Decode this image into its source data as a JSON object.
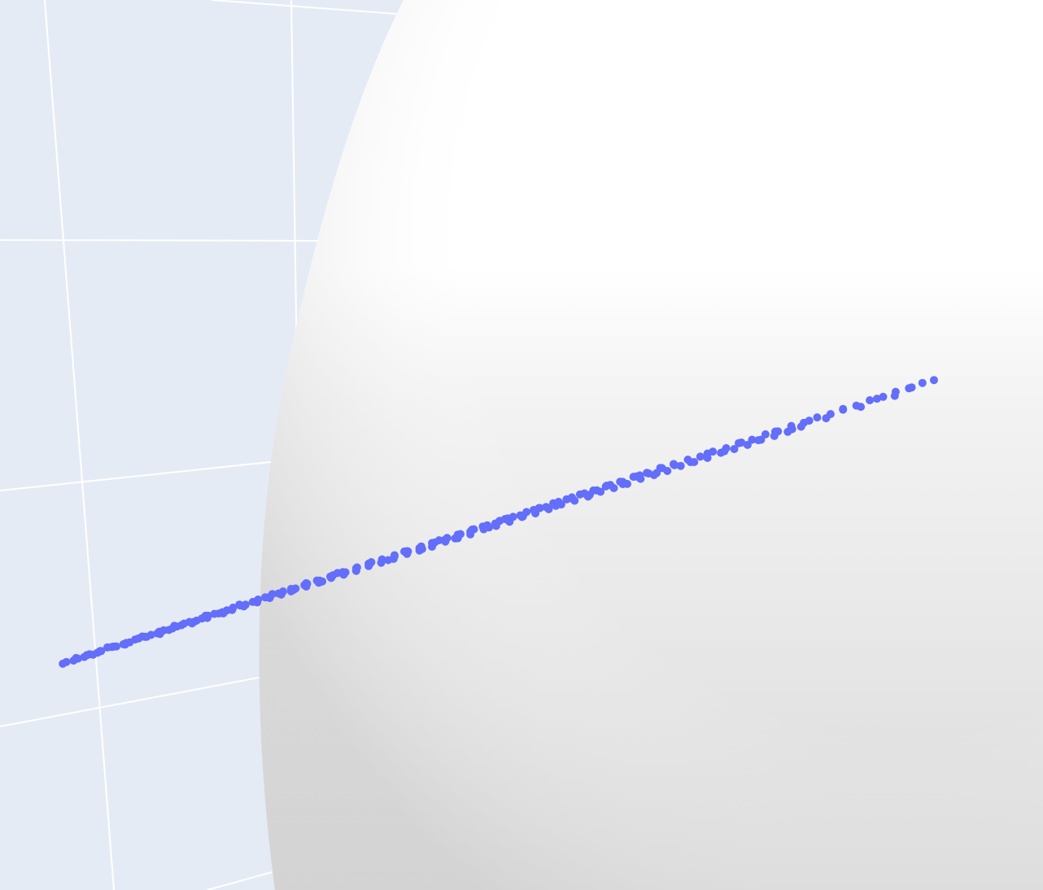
{
  "chart_data": {
    "type": "scatter",
    "title": "",
    "xlabel": "",
    "ylabel": "",
    "zlabel": "",
    "series": [
      {
        "marker": "circle",
        "color": "#636efa",
        "points": [
          [
            0.023,
            0.046
          ],
          [
            0.035,
            0.058
          ],
          [
            0.05,
            0.041
          ],
          [
            0.062,
            0.067
          ],
          [
            0.078,
            0.052
          ],
          [
            0.091,
            0.081
          ],
          [
            0.104,
            0.066
          ],
          [
            0.117,
            0.095
          ],
          [
            0.131,
            0.079
          ],
          [
            0.146,
            0.108
          ],
          [
            0.159,
            0.091
          ],
          [
            0.173,
            0.121
          ],
          [
            0.186,
            0.104
          ],
          [
            0.202,
            0.133
          ],
          [
            0.214,
            0.116
          ],
          [
            0.228,
            0.146
          ],
          [
            0.242,
            0.13
          ],
          [
            0.255,
            0.159
          ],
          [
            0.27,
            0.142
          ],
          [
            0.284,
            0.171
          ],
          [
            0.297,
            0.155
          ],
          [
            0.311,
            0.184
          ],
          [
            0.326,
            0.167
          ],
          [
            0.34,
            0.197
          ],
          [
            0.353,
            0.18
          ],
          [
            0.367,
            0.208
          ],
          [
            0.381,
            0.193
          ],
          [
            0.395,
            0.22
          ],
          [
            0.409,
            0.204
          ],
          [
            0.423,
            0.233
          ],
          [
            0.437,
            0.217
          ],
          [
            0.451,
            0.246
          ],
          [
            0.466,
            0.229
          ],
          [
            0.48,
            0.258
          ],
          [
            0.494,
            0.242
          ],
          [
            0.508,
            0.27
          ],
          [
            0.522,
            0.255
          ],
          [
            0.536,
            0.282
          ],
          [
            0.551,
            0.267
          ],
          [
            0.565,
            0.295
          ],
          [
            0.579,
            0.279
          ],
          [
            0.594,
            0.307
          ],
          [
            0.608,
            0.292
          ],
          [
            0.622,
            0.319
          ],
          [
            0.637,
            0.304
          ],
          [
            0.651,
            0.332
          ],
          [
            0.666,
            0.317
          ],
          [
            0.68,
            0.344
          ],
          [
            0.695,
            0.329
          ],
          [
            0.709,
            0.357
          ],
          [
            0.724,
            0.341
          ],
          [
            0.738,
            0.369
          ],
          [
            0.752,
            0.354
          ],
          [
            0.767,
            0.381
          ],
          [
            0.781,
            0.366
          ],
          [
            0.796,
            0.393
          ],
          [
            0.811,
            0.378
          ],
          [
            0.825,
            0.406
          ],
          [
            0.84,
            0.391
          ],
          [
            0.854,
            0.417
          ],
          [
            0.869,
            0.402
          ],
          [
            0.884,
            0.43
          ],
          [
            0.898,
            0.414
          ],
          [
            0.913,
            0.441
          ],
          [
            0.928,
            0.426
          ],
          [
            0.943,
            0.452
          ],
          [
            0.957,
            0.438
          ],
          [
            0.972,
            0.463
          ],
          [
            0.987,
            0.449
          ],
          [
            1.0,
            0.474
          ],
          [
            0.038,
            0.022
          ],
          [
            0.057,
            0.076
          ],
          [
            0.073,
            0.03
          ],
          [
            0.093,
            0.099
          ],
          [
            0.112,
            0.055
          ],
          [
            0.132,
            0.131
          ],
          [
            0.148,
            0.066
          ],
          [
            0.168,
            0.145
          ],
          [
            0.183,
            0.083
          ],
          [
            0.203,
            0.165
          ],
          [
            0.221,
            0.098
          ],
          [
            0.241,
            0.183
          ],
          [
            0.258,
            0.118
          ],
          [
            0.279,
            0.199
          ],
          [
            0.296,
            0.138
          ],
          [
            0.314,
            0.219
          ],
          [
            0.331,
            0.154
          ],
          [
            0.352,
            0.236
          ],
          [
            0.369,
            0.173
          ],
          [
            0.388,
            0.254
          ],
          [
            0.406,
            0.192
          ],
          [
            0.426,
            0.271
          ],
          [
            0.445,
            0.211
          ],
          [
            0.463,
            0.288
          ],
          [
            0.482,
            0.229
          ],
          [
            0.501,
            0.306
          ],
          [
            0.519,
            0.248
          ],
          [
            0.539,
            0.324
          ],
          [
            0.557,
            0.266
          ],
          [
            0.576,
            0.341
          ],
          [
            0.594,
            0.284
          ],
          [
            0.614,
            0.359
          ],
          [
            0.632,
            0.302
          ],
          [
            0.651,
            0.377
          ],
          [
            0.67,
            0.32
          ],
          [
            0.689,
            0.394
          ],
          [
            0.708,
            0.339
          ],
          [
            0.727,
            0.412
          ],
          [
            0.746,
            0.356
          ],
          [
            0.765,
            0.43
          ],
          [
            0.784,
            0.374
          ],
          [
            0.803,
            0.448
          ],
          [
            0.822,
            0.392
          ],
          [
            0.841,
            0.465
          ],
          [
            0.86,
            0.411
          ],
          [
            0.879,
            0.483
          ],
          [
            0.898,
            0.429
          ],
          [
            0.918,
            0.5
          ],
          [
            0.936,
            0.446
          ],
          [
            0.956,
            0.517
          ],
          [
            0.975,
            0.463
          ],
          [
            0.047,
            0.061
          ],
          [
            0.065,
            0.053
          ],
          [
            0.083,
            0.074
          ],
          [
            0.098,
            0.087
          ],
          [
            0.115,
            0.081
          ],
          [
            0.129,
            0.102
          ],
          [
            0.142,
            0.115
          ],
          [
            0.156,
            0.106
          ],
          [
            0.17,
            0.129
          ],
          [
            0.185,
            0.142
          ],
          [
            0.198,
            0.134
          ],
          [
            0.213,
            0.156
          ],
          [
            0.226,
            0.168
          ],
          [
            0.24,
            0.16
          ],
          [
            0.255,
            0.182
          ],
          [
            0.268,
            0.194
          ],
          [
            0.282,
            0.186
          ],
          [
            0.296,
            0.208
          ],
          [
            0.31,
            0.219
          ],
          [
            0.324,
            0.211
          ],
          [
            0.338,
            0.233
          ],
          [
            0.352,
            0.244
          ],
          [
            0.366,
            0.236
          ],
          [
            0.38,
            0.257
          ],
          [
            0.394,
            0.268
          ],
          [
            0.409,
            0.26
          ],
          [
            0.423,
            0.281
          ],
          [
            0.437,
            0.292
          ],
          [
            0.452,
            0.284
          ],
          [
            0.466,
            0.305
          ],
          [
            0.48,
            0.316
          ],
          [
            0.495,
            0.307
          ],
          [
            0.509,
            0.328
          ],
          [
            0.524,
            0.339
          ],
          [
            0.538,
            0.33
          ],
          [
            0.553,
            0.351
          ],
          [
            0.568,
            0.362
          ],
          [
            0.582,
            0.353
          ],
          [
            0.597,
            0.373
          ],
          [
            0.612,
            0.384
          ],
          [
            0.626,
            0.375
          ],
          [
            0.641,
            0.396
          ],
          [
            0.656,
            0.406
          ],
          [
            0.671,
            0.397
          ],
          [
            0.686,
            0.417
          ],
          [
            0.701,
            0.428
          ],
          [
            0.716,
            0.419
          ],
          [
            0.731,
            0.438
          ],
          [
            0.746,
            0.448
          ],
          [
            0.761,
            0.439
          ],
          [
            0.776,
            0.458
          ],
          [
            0.791,
            0.468
          ],
          [
            0.806,
            0.459
          ],
          [
            0.821,
            0.477
          ],
          [
            0.836,
            0.487
          ],
          [
            0.851,
            0.478
          ],
          [
            0.027,
            0.035
          ],
          [
            0.04,
            0.05
          ],
          [
            0.053,
            0.044
          ],
          [
            0.066,
            0.061
          ],
          [
            0.08,
            0.057
          ],
          [
            0.094,
            0.074
          ],
          [
            0.108,
            0.069
          ],
          [
            0.122,
            0.087
          ],
          [
            0.136,
            0.083
          ],
          [
            0.151,
            0.1
          ],
          [
            0.165,
            0.096
          ],
          [
            0.179,
            0.113
          ],
          [
            0.193,
            0.109
          ],
          [
            0.207,
            0.126
          ],
          [
            0.222,
            0.122
          ],
          [
            0.236,
            0.139
          ],
          [
            0.25,
            0.135
          ],
          [
            0.265,
            0.152
          ],
          [
            0.279,
            0.148
          ],
          [
            0.294,
            0.165
          ],
          [
            0.308,
            0.161
          ],
          [
            0.323,
            0.177
          ],
          [
            0.337,
            0.173
          ],
          [
            0.352,
            0.19
          ],
          [
            0.366,
            0.186
          ],
          [
            0.381,
            0.202
          ],
          [
            0.395,
            0.198
          ],
          [
            0.41,
            0.214
          ],
          [
            0.425,
            0.21
          ],
          [
            0.44,
            0.226
          ],
          [
            0.454,
            0.222
          ],
          [
            0.469,
            0.238
          ],
          [
            0.484,
            0.234
          ],
          [
            0.499,
            0.249
          ],
          [
            0.513,
            0.246
          ],
          [
            0.528,
            0.261
          ],
          [
            0.543,
            0.258
          ],
          [
            0.558,
            0.273
          ],
          [
            0.573,
            0.269
          ],
          [
            0.588,
            0.285
          ],
          [
            0.603,
            0.281
          ],
          [
            0.618,
            0.296
          ],
          [
            0.633,
            0.292
          ],
          [
            0.648,
            0.307
          ],
          [
            0.663,
            0.303
          ],
          [
            0.678,
            0.318
          ],
          [
            0.693,
            0.314
          ],
          [
            0.708,
            0.329
          ]
        ]
      }
    ]
  }
}
